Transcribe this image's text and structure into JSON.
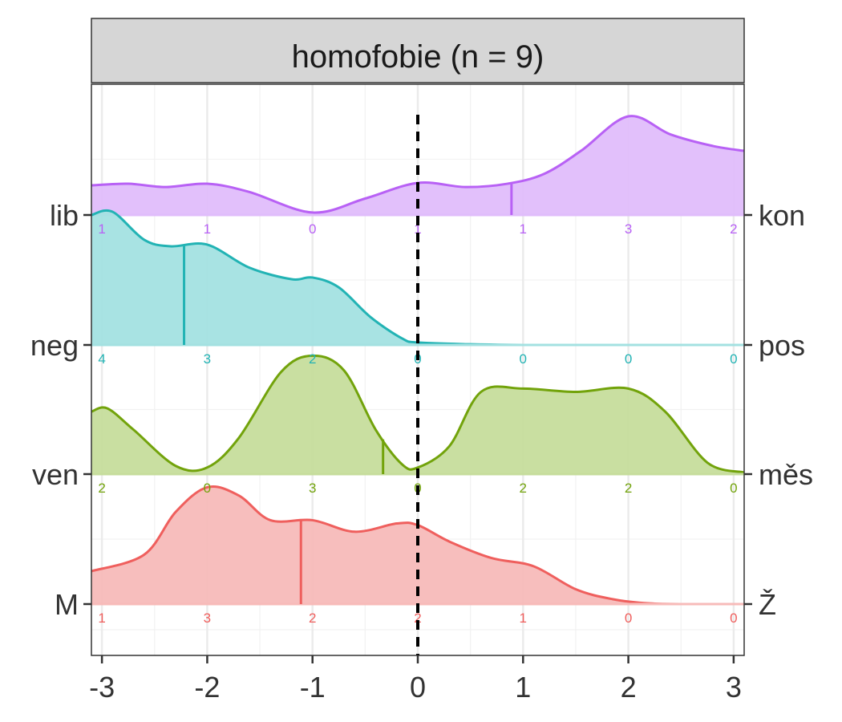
{
  "chart_data": {
    "type": "ridgeline",
    "title": "homofobie (n = 9)",
    "xlim": [
      -3.1,
      3.1
    ],
    "x_ticks": [
      -3,
      -2,
      -1,
      0,
      1,
      2,
      3
    ],
    "x_tick_labels": [
      "-3",
      "-2",
      "-1",
      "0",
      "1",
      "2",
      "3"
    ],
    "reference_line_x": 0,
    "count_positions": [
      -3,
      -2,
      -1,
      0,
      1,
      2,
      3
    ],
    "series": [
      {
        "left_label": "lib",
        "right_label": "kon",
        "color": "#b861f5",
        "fill": "#e0bdfb",
        "mean": 0.89,
        "counts": [
          "1",
          "1",
          "0",
          "1",
          "1",
          "3",
          "2"
        ],
        "density_x": [
          -3.1,
          -2.75,
          -2.4,
          -2.0,
          -1.6,
          -1.0,
          -0.5,
          0.0,
          0.45,
          0.85,
          1.2,
          1.55,
          2.0,
          2.4,
          2.8,
          3.1
        ],
        "density_y": [
          0.18,
          0.19,
          0.17,
          0.19,
          0.14,
          0.015,
          0.1,
          0.195,
          0.17,
          0.19,
          0.25,
          0.39,
          0.6,
          0.49,
          0.42,
          0.39
        ]
      },
      {
        "left_label": "neg",
        "right_label": "pos",
        "color": "#22b3b4",
        "fill": "#a3e1e1",
        "mean": -2.22,
        "counts": [
          "4",
          "3",
          "2",
          "0",
          "0",
          "0",
          "0"
        ],
        "density_x": [
          -3.1,
          -2.9,
          -2.6,
          -2.35,
          -2.0,
          -1.6,
          -1.2,
          -1.0,
          -0.75,
          -0.45,
          -0.15,
          0.0,
          0.5,
          1.0,
          2.0,
          3.1
        ],
        "density_y": [
          0.79,
          0.81,
          0.64,
          0.6,
          0.61,
          0.47,
          0.4,
          0.41,
          0.35,
          0.17,
          0.04,
          0.015,
          0.004,
          0.0,
          0.0,
          0.0
        ],
        "range_min": -3.1,
        "range_max": 3.1
      },
      {
        "left_label": "ven",
        "right_label": "měs",
        "color": "#72a30b",
        "fill": "#c6dd9c",
        "mean": -0.33,
        "counts": [
          "2",
          "0",
          "3",
          "0",
          "2",
          "2",
          "0"
        ],
        "density_x": [
          -3.1,
          -2.95,
          -2.7,
          -2.3,
          -2.0,
          -1.7,
          -1.3,
          -1.0,
          -0.7,
          -0.4,
          -0.15,
          0.0,
          0.3,
          0.6,
          1.0,
          1.5,
          2.0,
          2.35,
          2.75,
          3.1
        ],
        "density_y": [
          0.38,
          0.4,
          0.27,
          0.05,
          0.04,
          0.22,
          0.62,
          0.72,
          0.63,
          0.27,
          0.06,
          0.04,
          0.17,
          0.5,
          0.52,
          0.5,
          0.52,
          0.38,
          0.07,
          0.01
        ]
      },
      {
        "left_label": "M",
        "right_label": "Ž",
        "color": "#ef5f5d",
        "fill": "#f7bbb9",
        "mean": -1.11,
        "counts": [
          "1",
          "3",
          "2",
          "2",
          "1",
          "0",
          "0"
        ],
        "density_x": [
          -3.1,
          -2.6,
          -2.3,
          -2.0,
          -1.7,
          -1.4,
          -1.0,
          -0.6,
          -0.2,
          0.0,
          0.3,
          0.7,
          1.1,
          1.5,
          1.85,
          2.2,
          2.6,
          3.1
        ],
        "density_y": [
          0.2,
          0.3,
          0.56,
          0.71,
          0.66,
          0.51,
          0.51,
          0.44,
          0.49,
          0.48,
          0.38,
          0.28,
          0.23,
          0.09,
          0.03,
          0.004,
          0.0,
          0.0
        ]
      }
    ]
  }
}
